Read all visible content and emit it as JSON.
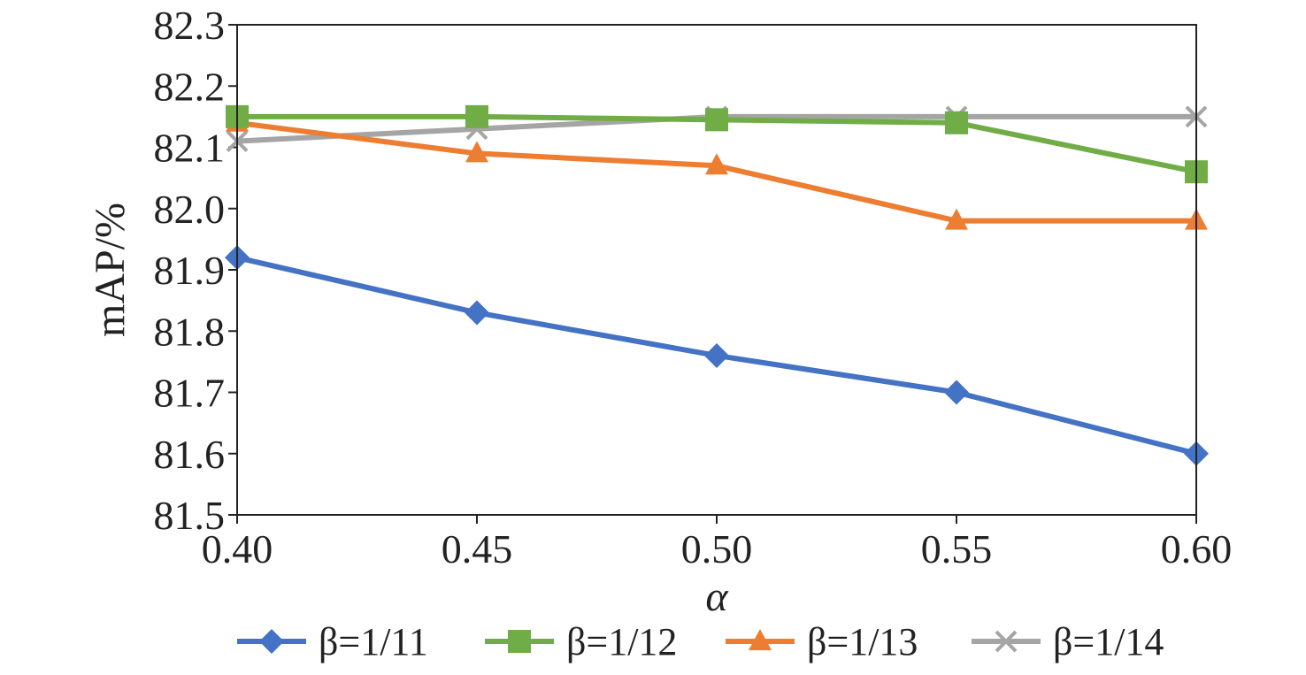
{
  "chart_data": {
    "type": "line",
    "title": "",
    "xlabel": "α",
    "ylabel": "mAP/%",
    "x": [
      "0.40",
      "0.45",
      "0.50",
      "0.55",
      "0.60"
    ],
    "x_values": [
      0.4,
      0.45,
      0.5,
      0.55,
      0.6
    ],
    "yticks": [
      "81.5",
      "81.6",
      "81.7",
      "81.8",
      "81.9",
      "82.0",
      "82.1",
      "82.2",
      "82.3"
    ],
    "ylim": [
      81.5,
      82.3
    ],
    "xlim": [
      0.4,
      0.6
    ],
    "grid": false,
    "legend_position": "bottom",
    "series": [
      {
        "name": "β=1/11",
        "values": [
          81.92,
          81.83,
          81.76,
          81.7,
          81.6
        ],
        "color": "#4472c4",
        "marker": "diamond"
      },
      {
        "name": "β=1/12",
        "values": [
          82.15,
          82.15,
          82.145,
          82.14,
          82.06
        ],
        "color": "#70ad47",
        "marker": "square"
      },
      {
        "name": "β=1/13",
        "values": [
          82.14,
          82.09,
          82.07,
          81.98,
          81.98
        ],
        "color": "#ed7d31",
        "marker": "triangle"
      },
      {
        "name": "β=1/14",
        "values": [
          82.11,
          82.13,
          82.15,
          82.15,
          82.15
        ],
        "color": "#a5a5a5",
        "marker": "x"
      }
    ]
  }
}
